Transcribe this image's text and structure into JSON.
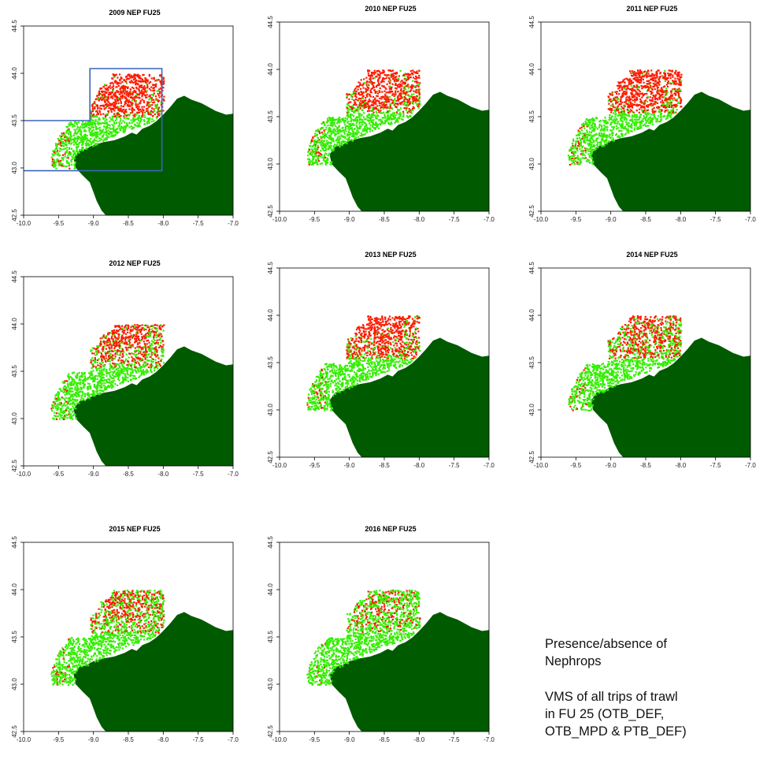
{
  "chart_data": [
    {
      "type": "scatter",
      "title": "2009 NEP FU25",
      "xlim": [
        -10.0,
        -7.0
      ],
      "ylim": [
        42.5,
        44.5
      ],
      "red_share": 0.72,
      "has_area_outline": true
    },
    {
      "type": "scatter",
      "title": "2010 NEP FU25",
      "xlim": [
        -10.0,
        -7.0
      ],
      "ylim": [
        42.5,
        44.5
      ],
      "red_share": 0.6,
      "has_area_outline": false
    },
    {
      "type": "scatter",
      "title": "2011 NEP FU25",
      "xlim": [
        -10.0,
        -7.0
      ],
      "ylim": [
        42.5,
        44.5
      ],
      "red_share": 0.7,
      "has_area_outline": false
    },
    {
      "type": "scatter",
      "title": "2012 NEP FU25",
      "xlim": [
        -10.0,
        -7.0
      ],
      "ylim": [
        42.5,
        44.5
      ],
      "red_share": 0.45,
      "has_area_outline": false
    },
    {
      "type": "scatter",
      "title": "2013 NEP FU25",
      "xlim": [
        -10.0,
        -7.0
      ],
      "ylim": [
        42.5,
        44.5
      ],
      "red_share": 0.55,
      "has_area_outline": false
    },
    {
      "type": "scatter",
      "title": "2014 NEP FU25",
      "xlim": [
        -10.0,
        -7.0
      ],
      "ylim": [
        42.5,
        44.5
      ],
      "red_share": 0.42,
      "has_area_outline": false
    },
    {
      "type": "scatter",
      "title": "2015 NEP FU25",
      "xlim": [
        -10.0,
        -7.0
      ],
      "ylim": [
        42.5,
        44.5
      ],
      "red_share": 0.35,
      "has_area_outline": false
    },
    {
      "type": "scatter",
      "title": "2016 NEP FU25",
      "xlim": [
        -10.0,
        -7.0
      ],
      "ylim": [
        42.5,
        44.5
      ],
      "red_share": 0.2,
      "has_area_outline": false
    }
  ],
  "axes": {
    "x_ticks": [
      "-10.0",
      "-9.5",
      "-9.0",
      "-8.5",
      "-8.0",
      "-7.5",
      "-7.0"
    ],
    "y_ticks": [
      "42.5",
      "43.0",
      "43.5",
      "44.0",
      "44.5"
    ]
  },
  "colors": {
    "presence": "#ff1a00",
    "absence": "#33ee00",
    "land": "#005a00",
    "outline": "#3a66b8"
  },
  "caption": {
    "line1": "Presence/absence of",
    "line2": "Nephrops",
    "line3": "VMS of all trips of trawl",
    "line4": "in FU 25 (OTB_DEF,",
    "line5": "OTB_MPD & PTB_DEF)"
  }
}
